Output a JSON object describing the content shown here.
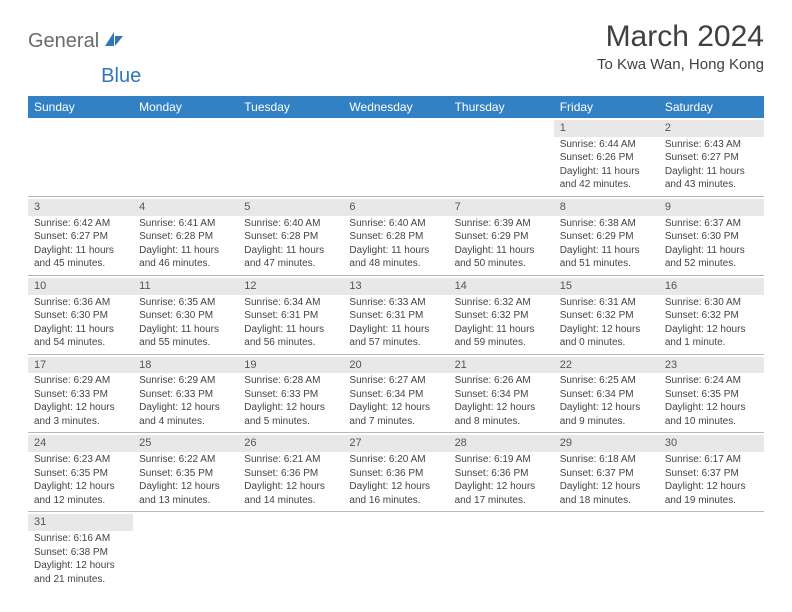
{
  "logo": {
    "part1": "General",
    "part2": "Blue"
  },
  "header": {
    "title": "March 2024",
    "location": "To Kwa Wan, Hong Kong"
  },
  "colors": {
    "header_bg": "#3181c4",
    "header_text": "#ffffff",
    "day_num_bg": "#e8e8e8",
    "border": "#b8b8b8",
    "logo_gray": "#6b6b6b",
    "logo_blue": "#2f77b8"
  },
  "days_of_week": [
    "Sunday",
    "Monday",
    "Tuesday",
    "Wednesday",
    "Thursday",
    "Friday",
    "Saturday"
  ],
  "weeks": [
    [
      null,
      null,
      null,
      null,
      null,
      {
        "n": "1",
        "sr": "Sunrise: 6:44 AM",
        "ss": "Sunset: 6:26 PM",
        "dl": "Daylight: 11 hours and 42 minutes."
      },
      {
        "n": "2",
        "sr": "Sunrise: 6:43 AM",
        "ss": "Sunset: 6:27 PM",
        "dl": "Daylight: 11 hours and 43 minutes."
      }
    ],
    [
      {
        "n": "3",
        "sr": "Sunrise: 6:42 AM",
        "ss": "Sunset: 6:27 PM",
        "dl": "Daylight: 11 hours and 45 minutes."
      },
      {
        "n": "4",
        "sr": "Sunrise: 6:41 AM",
        "ss": "Sunset: 6:28 PM",
        "dl": "Daylight: 11 hours and 46 minutes."
      },
      {
        "n": "5",
        "sr": "Sunrise: 6:40 AM",
        "ss": "Sunset: 6:28 PM",
        "dl": "Daylight: 11 hours and 47 minutes."
      },
      {
        "n": "6",
        "sr": "Sunrise: 6:40 AM",
        "ss": "Sunset: 6:28 PM",
        "dl": "Daylight: 11 hours and 48 minutes."
      },
      {
        "n": "7",
        "sr": "Sunrise: 6:39 AM",
        "ss": "Sunset: 6:29 PM",
        "dl": "Daylight: 11 hours and 50 minutes."
      },
      {
        "n": "8",
        "sr": "Sunrise: 6:38 AM",
        "ss": "Sunset: 6:29 PM",
        "dl": "Daylight: 11 hours and 51 minutes."
      },
      {
        "n": "9",
        "sr": "Sunrise: 6:37 AM",
        "ss": "Sunset: 6:30 PM",
        "dl": "Daylight: 11 hours and 52 minutes."
      }
    ],
    [
      {
        "n": "10",
        "sr": "Sunrise: 6:36 AM",
        "ss": "Sunset: 6:30 PM",
        "dl": "Daylight: 11 hours and 54 minutes."
      },
      {
        "n": "11",
        "sr": "Sunrise: 6:35 AM",
        "ss": "Sunset: 6:30 PM",
        "dl": "Daylight: 11 hours and 55 minutes."
      },
      {
        "n": "12",
        "sr": "Sunrise: 6:34 AM",
        "ss": "Sunset: 6:31 PM",
        "dl": "Daylight: 11 hours and 56 minutes."
      },
      {
        "n": "13",
        "sr": "Sunrise: 6:33 AM",
        "ss": "Sunset: 6:31 PM",
        "dl": "Daylight: 11 hours and 57 minutes."
      },
      {
        "n": "14",
        "sr": "Sunrise: 6:32 AM",
        "ss": "Sunset: 6:32 PM",
        "dl": "Daylight: 11 hours and 59 minutes."
      },
      {
        "n": "15",
        "sr": "Sunrise: 6:31 AM",
        "ss": "Sunset: 6:32 PM",
        "dl": "Daylight: 12 hours and 0 minutes."
      },
      {
        "n": "16",
        "sr": "Sunrise: 6:30 AM",
        "ss": "Sunset: 6:32 PM",
        "dl": "Daylight: 12 hours and 1 minute."
      }
    ],
    [
      {
        "n": "17",
        "sr": "Sunrise: 6:29 AM",
        "ss": "Sunset: 6:33 PM",
        "dl": "Daylight: 12 hours and 3 minutes."
      },
      {
        "n": "18",
        "sr": "Sunrise: 6:29 AM",
        "ss": "Sunset: 6:33 PM",
        "dl": "Daylight: 12 hours and 4 minutes."
      },
      {
        "n": "19",
        "sr": "Sunrise: 6:28 AM",
        "ss": "Sunset: 6:33 PM",
        "dl": "Daylight: 12 hours and 5 minutes."
      },
      {
        "n": "20",
        "sr": "Sunrise: 6:27 AM",
        "ss": "Sunset: 6:34 PM",
        "dl": "Daylight: 12 hours and 7 minutes."
      },
      {
        "n": "21",
        "sr": "Sunrise: 6:26 AM",
        "ss": "Sunset: 6:34 PM",
        "dl": "Daylight: 12 hours and 8 minutes."
      },
      {
        "n": "22",
        "sr": "Sunrise: 6:25 AM",
        "ss": "Sunset: 6:34 PM",
        "dl": "Daylight: 12 hours and 9 minutes."
      },
      {
        "n": "23",
        "sr": "Sunrise: 6:24 AM",
        "ss": "Sunset: 6:35 PM",
        "dl": "Daylight: 12 hours and 10 minutes."
      }
    ],
    [
      {
        "n": "24",
        "sr": "Sunrise: 6:23 AM",
        "ss": "Sunset: 6:35 PM",
        "dl": "Daylight: 12 hours and 12 minutes."
      },
      {
        "n": "25",
        "sr": "Sunrise: 6:22 AM",
        "ss": "Sunset: 6:35 PM",
        "dl": "Daylight: 12 hours and 13 minutes."
      },
      {
        "n": "26",
        "sr": "Sunrise: 6:21 AM",
        "ss": "Sunset: 6:36 PM",
        "dl": "Daylight: 12 hours and 14 minutes."
      },
      {
        "n": "27",
        "sr": "Sunrise: 6:20 AM",
        "ss": "Sunset: 6:36 PM",
        "dl": "Daylight: 12 hours and 16 minutes."
      },
      {
        "n": "28",
        "sr": "Sunrise: 6:19 AM",
        "ss": "Sunset: 6:36 PM",
        "dl": "Daylight: 12 hours and 17 minutes."
      },
      {
        "n": "29",
        "sr": "Sunrise: 6:18 AM",
        "ss": "Sunset: 6:37 PM",
        "dl": "Daylight: 12 hours and 18 minutes."
      },
      {
        "n": "30",
        "sr": "Sunrise: 6:17 AM",
        "ss": "Sunset: 6:37 PM",
        "dl": "Daylight: 12 hours and 19 minutes."
      }
    ],
    [
      {
        "n": "31",
        "sr": "Sunrise: 6:16 AM",
        "ss": "Sunset: 6:38 PM",
        "dl": "Daylight: 12 hours and 21 minutes."
      },
      null,
      null,
      null,
      null,
      null,
      null
    ]
  ]
}
